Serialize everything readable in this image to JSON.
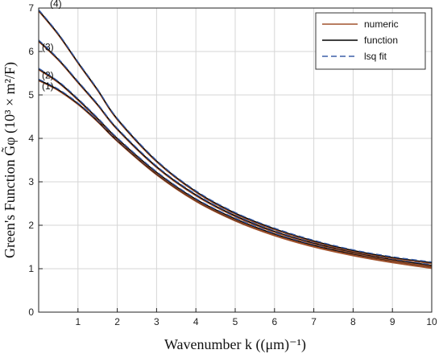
{
  "chart_data": {
    "type": "line",
    "xlabel": "Wavenumber k ((μm)⁻¹)",
    "ylabel": "Green's Function G̃φ (10³ × m²/F)",
    "xlim": [
      0,
      10
    ],
    "ylim": [
      0,
      7
    ],
    "xticks": [
      1,
      2,
      3,
      4,
      5,
      6,
      7,
      8,
      9,
      10
    ],
    "yticks": [
      0,
      1,
      2,
      3,
      4,
      5,
      6,
      7
    ],
    "grid": true,
    "legend_position": "top-right",
    "legend": [
      {
        "label": "numeric",
        "color": "#a0522d",
        "style": "solid"
      },
      {
        "label": "function",
        "color": "#000000",
        "style": "solid"
      },
      {
        "label": "lsq fit",
        "color": "#3b5fa8",
        "style": "dashed"
      }
    ],
    "x": [
      0,
      0.5,
      1,
      1.5,
      2,
      3,
      4,
      5,
      6,
      7,
      8,
      9,
      10
    ],
    "curves": [
      {
        "label": "(1)",
        "values": [
          5.35,
          5.12,
          4.8,
          4.4,
          3.95,
          3.18,
          2.57,
          2.12,
          1.78,
          1.52,
          1.32,
          1.16,
          1.03
        ]
      },
      {
        "label": "(2)",
        "values": [
          5.6,
          5.3,
          4.9,
          4.46,
          4.0,
          3.22,
          2.6,
          2.15,
          1.8,
          1.54,
          1.34,
          1.18,
          1.05
        ]
      },
      {
        "label": "(3)",
        "values": [
          6.25,
          5.82,
          5.3,
          4.78,
          4.22,
          3.35,
          2.7,
          2.22,
          1.86,
          1.59,
          1.38,
          1.21,
          1.08
        ]
      },
      {
        "label": "(4)",
        "values": [
          6.95,
          6.4,
          5.75,
          5.12,
          4.45,
          3.48,
          2.78,
          2.28,
          1.92,
          1.64,
          1.42,
          1.26,
          1.14
        ]
      }
    ]
  }
}
